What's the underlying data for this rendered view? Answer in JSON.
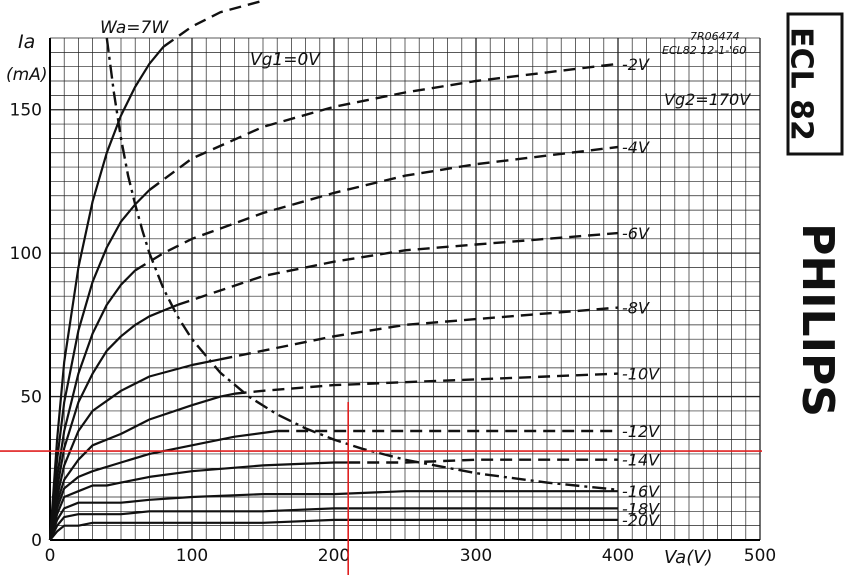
{
  "chart_data": {
    "type": "line",
    "title": "ECL 82",
    "code": "7R06474",
    "subtitle": "ECL82 12-1-'60",
    "brand": "PHILIPS",
    "xlabel": "Va(V)",
    "ylabel_main": "Ia",
    "ylabel_unit": "(mA)",
    "xlim": [
      0,
      500
    ],
    "ylim": [
      0,
      175
    ],
    "x_ticks": [
      0,
      100,
      200,
      300,
      400,
      500
    ],
    "y_ticks": [
      0,
      50,
      100,
      150
    ],
    "grid": true,
    "annotations": {
      "vg2": "Vg2=170V",
      "vg1_zero": "Vg1=0V",
      "wa": "Wa=7W"
    },
    "series": [
      {
        "name": "0V",
        "label": "",
        "solid": [
          [
            0,
            0
          ],
          [
            5,
            35
          ],
          [
            10,
            62
          ],
          [
            20,
            95
          ],
          [
            30,
            118
          ],
          [
            40,
            135
          ],
          [
            50,
            148
          ],
          [
            60,
            158
          ],
          [
            70,
            166
          ],
          [
            80,
            172
          ]
        ],
        "dashed": [
          [
            80,
            172
          ],
          [
            100,
            179
          ],
          [
            120,
            184
          ],
          [
            150,
            188
          ]
        ]
      },
      {
        "name": "-2V",
        "label": "-2V",
        "solid": [
          [
            0,
            0
          ],
          [
            5,
            28
          ],
          [
            10,
            48
          ],
          [
            20,
            73
          ],
          [
            30,
            90
          ],
          [
            40,
            102
          ],
          [
            50,
            111
          ],
          [
            60,
            117
          ],
          [
            70,
            122
          ]
        ],
        "dashed": [
          [
            70,
            122
          ],
          [
            100,
            133
          ],
          [
            150,
            144
          ],
          [
            200,
            151
          ],
          [
            250,
            156
          ],
          [
            300,
            160
          ],
          [
            350,
            163
          ],
          [
            400,
            166
          ]
        ]
      },
      {
        "name": "-4V",
        "label": "-4V",
        "solid": [
          [
            0,
            0
          ],
          [
            5,
            22
          ],
          [
            10,
            38
          ],
          [
            20,
            58
          ],
          [
            30,
            72
          ],
          [
            40,
            82
          ],
          [
            50,
            89
          ],
          [
            60,
            94
          ]
        ],
        "dashed": [
          [
            60,
            94
          ],
          [
            80,
            100
          ],
          [
            100,
            105
          ],
          [
            150,
            114
          ],
          [
            200,
            121
          ],
          [
            250,
            127
          ],
          [
            300,
            131
          ],
          [
            350,
            134
          ],
          [
            400,
            137
          ]
        ]
      },
      {
        "name": "-6V",
        "label": "-6V",
        "solid": [
          [
            0,
            0
          ],
          [
            5,
            18
          ],
          [
            10,
            32
          ],
          [
            20,
            48
          ],
          [
            30,
            58
          ],
          [
            40,
            66
          ],
          [
            50,
            71
          ],
          [
            60,
            75
          ],
          [
            70,
            78
          ],
          [
            80,
            80
          ],
          [
            90,
            82
          ]
        ],
        "dashed": [
          [
            90,
            82
          ],
          [
            150,
            92
          ],
          [
            200,
            97
          ],
          [
            250,
            101
          ],
          [
            300,
            103
          ],
          [
            350,
            105
          ],
          [
            400,
            107
          ]
        ]
      },
      {
        "name": "-8V",
        "label": "-8V",
        "solid": [
          [
            0,
            0
          ],
          [
            5,
            15
          ],
          [
            10,
            26
          ],
          [
            20,
            38
          ],
          [
            30,
            45
          ],
          [
            50,
            52
          ],
          [
            70,
            57
          ],
          [
            100,
            61
          ],
          [
            120,
            63
          ]
        ],
        "dashed": [
          [
            120,
            63
          ],
          [
            150,
            66
          ],
          [
            200,
            71
          ],
          [
            250,
            75
          ],
          [
            300,
            77
          ],
          [
            350,
            79
          ],
          [
            400,
            81
          ]
        ]
      },
      {
        "name": "-10V",
        "label": "-10V",
        "solid": [
          [
            0,
            0
          ],
          [
            5,
            13
          ],
          [
            10,
            21
          ],
          [
            20,
            28
          ],
          [
            30,
            33
          ],
          [
            50,
            37
          ],
          [
            70,
            42
          ],
          [
            100,
            47
          ],
          [
            120,
            50
          ],
          [
            130,
            51
          ]
        ],
        "dashed": [
          [
            130,
            51
          ],
          [
            150,
            52
          ],
          [
            200,
            54
          ],
          [
            250,
            55
          ],
          [
            300,
            56
          ],
          [
            350,
            57
          ],
          [
            400,
            58
          ]
        ]
      },
      {
        "name": "-12V",
        "label": "-12V",
        "solid": [
          [
            0,
            0
          ],
          [
            5,
            11
          ],
          [
            10,
            18
          ],
          [
            20,
            22
          ],
          [
            30,
            24
          ],
          [
            50,
            27
          ],
          [
            70,
            30
          ],
          [
            100,
            33
          ],
          [
            130,
            36
          ],
          [
            160,
            38
          ]
        ],
        "dashed": [
          [
            160,
            38
          ],
          [
            200,
            38
          ],
          [
            250,
            38
          ],
          [
            300,
            38
          ],
          [
            350,
            38
          ],
          [
            400,
            38
          ]
        ]
      },
      {
        "name": "-14V",
        "label": "-14V",
        "solid": [
          [
            0,
            0
          ],
          [
            5,
            9
          ],
          [
            10,
            15
          ],
          [
            20,
            17
          ],
          [
            30,
            19
          ],
          [
            40,
            19
          ],
          [
            50,
            20
          ],
          [
            70,
            22
          ],
          [
            100,
            24
          ],
          [
            150,
            26
          ],
          [
            200,
            27
          ],
          [
            210,
            27
          ]
        ],
        "dashed": [
          [
            210,
            27
          ],
          [
            250,
            27
          ],
          [
            300,
            28
          ],
          [
            350,
            28
          ],
          [
            400,
            28
          ]
        ]
      },
      {
        "name": "-16V",
        "label": "-16V",
        "solid": [
          [
            0,
            0
          ],
          [
            5,
            7
          ],
          [
            10,
            11
          ],
          [
            20,
            13
          ],
          [
            30,
            13
          ],
          [
            50,
            13
          ],
          [
            70,
            14
          ],
          [
            100,
            15
          ],
          [
            150,
            16
          ],
          [
            200,
            16
          ],
          [
            250,
            17
          ],
          [
            300,
            17
          ],
          [
            350,
            17
          ],
          [
            400,
            17
          ]
        ],
        "dashed": []
      },
      {
        "name": "-18V",
        "label": "-18V",
        "solid": [
          [
            0,
            0
          ],
          [
            5,
            5
          ],
          [
            10,
            8
          ],
          [
            20,
            9
          ],
          [
            30,
            9
          ],
          [
            50,
            9
          ],
          [
            70,
            10
          ],
          [
            100,
            10
          ],
          [
            150,
            10
          ],
          [
            200,
            11
          ],
          [
            250,
            11
          ],
          [
            300,
            11
          ],
          [
            350,
            11
          ],
          [
            400,
            11
          ]
        ],
        "dashed": []
      },
      {
        "name": "-20V",
        "label": "-20V",
        "solid": [
          [
            0,
            0
          ],
          [
            5,
            3
          ],
          [
            10,
            5
          ],
          [
            20,
            5
          ],
          [
            30,
            6
          ],
          [
            50,
            6
          ],
          [
            100,
            6
          ],
          [
            150,
            6
          ],
          [
            200,
            7
          ],
          [
            250,
            7
          ],
          [
            300,
            7
          ],
          [
            350,
            7
          ],
          [
            400,
            7
          ]
        ],
        "dashed": []
      }
    ],
    "power_curve": {
      "name": "Wa=7W",
      "points": [
        [
          40,
          175
        ],
        [
          45,
          156
        ],
        [
          50,
          140
        ],
        [
          55,
          127
        ],
        [
          60,
          117
        ],
        [
          65,
          108
        ],
        [
          70,
          100
        ],
        [
          80,
          87.5
        ],
        [
          90,
          77.8
        ],
        [
          100,
          70
        ],
        [
          120,
          58.3
        ],
        [
          140,
          50
        ],
        [
          160,
          43.8
        ],
        [
          180,
          38.9
        ],
        [
          200,
          35
        ],
        [
          220,
          31.8
        ],
        [
          250,
          28
        ],
        [
          300,
          23.3
        ],
        [
          350,
          20
        ],
        [
          400,
          17.5
        ]
      ]
    },
    "markers": {
      "x": 210,
      "y": 31,
      "color": "#e02020"
    }
  }
}
